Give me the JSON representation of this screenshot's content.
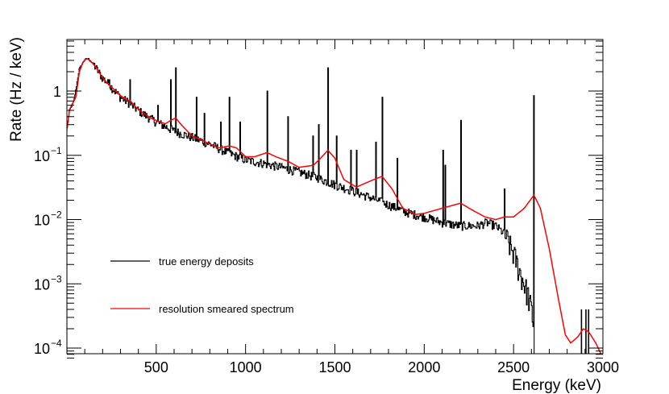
{
  "chart_data": {
    "type": "line",
    "title": "",
    "xlabel": "Energy (keV)",
    "ylabel": "Rate (Hz / keV)",
    "xlim": [
      0,
      3000
    ],
    "ylim": [
      7e-05,
      6
    ],
    "yscale": "log",
    "x_ticks": [
      500,
      1000,
      1500,
      2000,
      2500,
      3000
    ],
    "x_tick_labels": [
      "500",
      "1000",
      "1500",
      "2000",
      "2500",
      "3000"
    ],
    "y_ticks": [
      {
        "value": 1,
        "label": "1"
      },
      {
        "value": 0.1,
        "mantissa": "10",
        "exponent": "−1"
      },
      {
        "value": 0.01,
        "mantissa": "10",
        "exponent": "−2"
      },
      {
        "value": 0.001,
        "mantissa": "10",
        "exponent": "−3"
      },
      {
        "value": 0.0001,
        "mantissa": "10",
        "exponent": "−4"
      }
    ],
    "legend_position": "lower-left",
    "series": [
      {
        "name": "true energy deposits",
        "color": "#000000",
        "style": "histogram",
        "continuum": [
          [
            0,
            0.25
          ],
          [
            15,
            0.5
          ],
          [
            40,
            0.7
          ],
          [
            70,
            2.2
          ],
          [
            100,
            3.1
          ],
          [
            120,
            3.2
          ],
          [
            150,
            2.6
          ],
          [
            200,
            1.6
          ],
          [
            250,
            1.15
          ],
          [
            300,
            0.8
          ],
          [
            350,
            0.65
          ],
          [
            400,
            0.5
          ],
          [
            450,
            0.4
          ],
          [
            500,
            0.33
          ],
          [
            600,
            0.24
          ],
          [
            700,
            0.19
          ],
          [
            800,
            0.15
          ],
          [
            900,
            0.11
          ],
          [
            1000,
            0.085
          ],
          [
            1100,
            0.075
          ],
          [
            1200,
            0.065
          ],
          [
            1300,
            0.055
          ],
          [
            1400,
            0.045
          ],
          [
            1500,
            0.035
          ],
          [
            1600,
            0.028
          ],
          [
            1700,
            0.022
          ],
          [
            1800,
            0.017
          ],
          [
            1900,
            0.013
          ],
          [
            2000,
            0.011
          ],
          [
            2100,
            0.009
          ],
          [
            2200,
            0.008
          ],
          [
            2300,
            0.008
          ],
          [
            2350,
            0.009
          ],
          [
            2400,
            0.008
          ],
          [
            2450,
            0.006
          ],
          [
            2500,
            0.003
          ],
          [
            2550,
            0.0012
          ],
          [
            2580,
            0.0007
          ],
          [
            2600,
            0.0004
          ],
          [
            2615,
            0.0002
          ]
        ],
        "lines": [
          [
            238,
            1.5
          ],
          [
            295,
            0.9
          ],
          [
            352,
            1.5
          ],
          [
            510,
            0.6
          ],
          [
            583,
            1.5
          ],
          [
            609,
            2.3
          ],
          [
            727,
            0.8
          ],
          [
            768,
            0.45
          ],
          [
            860,
            0.33
          ],
          [
            911,
            0.8
          ],
          [
            969,
            0.33
          ],
          [
            1120,
            1.0
          ],
          [
            1238,
            0.4
          ],
          [
            1377,
            0.2
          ],
          [
            1408,
            0.3
          ],
          [
            1461,
            2.3
          ],
          [
            1509,
            0.2
          ],
          [
            1588,
            0.12
          ],
          [
            1620,
            0.12
          ],
          [
            1730,
            0.16
          ],
          [
            1764,
            0.8
          ],
          [
            1848,
            0.09
          ],
          [
            2104,
            0.12
          ],
          [
            2118,
            0.07
          ],
          [
            2204,
            0.35
          ],
          [
            2448,
            0.03
          ],
          [
            2614,
            0.85
          ]
        ],
        "high_tail_spikes": [
          [
            2660,
            8e-05
          ],
          [
            2690,
            7e-05
          ],
          [
            2880,
            0.0004
          ],
          [
            2905,
            0.0004
          ],
          [
            2920,
            0.0004
          ]
        ]
      },
      {
        "name": "resolution smeared spectrum",
        "color": "#ff0000",
        "style": "line",
        "points": [
          [
            0,
            0.25
          ],
          [
            15,
            0.52
          ],
          [
            30,
            0.62
          ],
          [
            50,
            0.8
          ],
          [
            70,
            2.0
          ],
          [
            90,
            2.8
          ],
          [
            110,
            3.2
          ],
          [
            130,
            3.0
          ],
          [
            160,
            2.4
          ],
          [
            200,
            1.6
          ],
          [
            250,
            1.15
          ],
          [
            300,
            0.85
          ],
          [
            340,
            0.72
          ],
          [
            352,
            0.72
          ],
          [
            380,
            0.58
          ],
          [
            420,
            0.47
          ],
          [
            470,
            0.38
          ],
          [
            510,
            0.34
          ],
          [
            550,
            0.31
          ],
          [
            590,
            0.36
          ],
          [
            609,
            0.38
          ],
          [
            640,
            0.3
          ],
          [
            700,
            0.2
          ],
          [
            760,
            0.17
          ],
          [
            800,
            0.15
          ],
          [
            850,
            0.13
          ],
          [
            910,
            0.14
          ],
          [
            950,
            0.13
          ],
          [
            1000,
            0.095
          ],
          [
            1050,
            0.095
          ],
          [
            1120,
            0.11
          ],
          [
            1170,
            0.095
          ],
          [
            1240,
            0.08
          ],
          [
            1300,
            0.065
          ],
          [
            1380,
            0.07
          ],
          [
            1420,
            0.09
          ],
          [
            1461,
            0.12
          ],
          [
            1500,
            0.09
          ],
          [
            1550,
            0.042
          ],
          [
            1620,
            0.032
          ],
          [
            1700,
            0.04
          ],
          [
            1764,
            0.047
          ],
          [
            1820,
            0.03
          ],
          [
            1880,
            0.015
          ],
          [
            1950,
            0.012
          ],
          [
            2000,
            0.0125
          ],
          [
            2100,
            0.015
          ],
          [
            2204,
            0.018
          ],
          [
            2270,
            0.014
          ],
          [
            2340,
            0.011
          ],
          [
            2400,
            0.01
          ],
          [
            2450,
            0.011
          ],
          [
            2500,
            0.011
          ],
          [
            2560,
            0.015
          ],
          [
            2614,
            0.024
          ],
          [
            2650,
            0.015
          ],
          [
            2700,
            0.0035
          ],
          [
            2750,
            0.0006
          ],
          [
            2790,
            0.00016
          ],
          [
            2820,
            0.00012
          ],
          [
            2860,
            0.00015
          ],
          [
            2890,
            0.0002
          ],
          [
            2920,
            0.00018
          ],
          [
            2960,
            0.00012
          ],
          [
            3000,
            7e-05
          ]
        ]
      }
    ]
  }
}
